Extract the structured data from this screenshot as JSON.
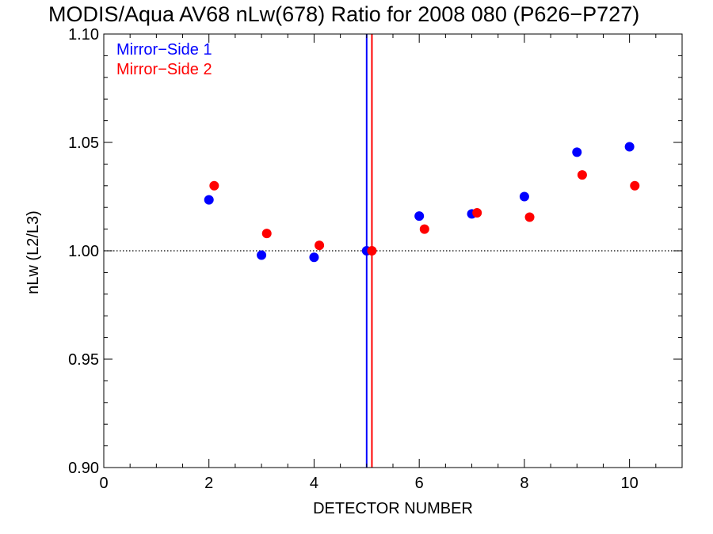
{
  "chart_data": {
    "type": "scatter",
    "title": "MODIS/Aqua AV68 nLw(678) Ratio for 2008 080 (P626−P727)",
    "xlabel": "DETECTOR NUMBER",
    "ylabel": "nLw (L2/L3)",
    "xlim": [
      0,
      11
    ],
    "ylim": [
      0.9,
      1.1
    ],
    "x_ticks": [
      0,
      2,
      4,
      6,
      8,
      10
    ],
    "x_tick_labels": [
      "0",
      "2",
      "4",
      "6",
      "8",
      "10"
    ],
    "x_minor_step": 0.5,
    "y_ticks": [
      0.9,
      0.95,
      1.0,
      1.05,
      1.1
    ],
    "y_tick_labels": [
      "0.90",
      "0.95",
      "1.00",
      "1.05",
      "1.10"
    ],
    "y_minor_step": 0.01,
    "reference_line": {
      "y": 1.0,
      "style": "dotted"
    },
    "vertical_lines": [
      {
        "x": 5.0,
        "color": "#0000ff"
      },
      {
        "x": 5.1,
        "color": "#ff0000"
      }
    ],
    "legend_position": "top-left",
    "series": [
      {
        "name": "Mirror−Side 1",
        "color": "#0000ff",
        "x": [
          2,
          3,
          4,
          5,
          6,
          7,
          8,
          9,
          10
        ],
        "y": [
          1.0235,
          0.998,
          0.997,
          1.0,
          1.016,
          1.017,
          1.025,
          1.0455,
          1.048
        ]
      },
      {
        "name": "Mirror−Side 2",
        "color": "#ff0000",
        "x": [
          2.1,
          3.1,
          4.1,
          5.1,
          6.1,
          7.1,
          8.1,
          9.1,
          10.1
        ],
        "y": [
          1.03,
          1.008,
          1.0025,
          1.0,
          1.01,
          1.0175,
          1.0155,
          1.035,
          1.03
        ]
      }
    ]
  }
}
